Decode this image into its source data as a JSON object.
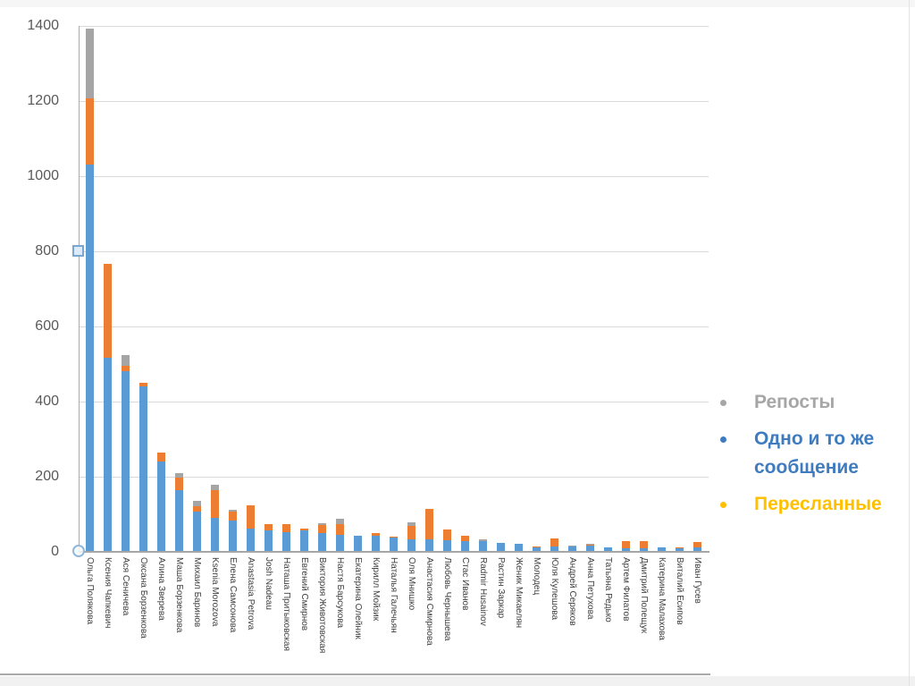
{
  "chrome": {
    "background": "#ffffff",
    "strip_color": "#f1f1f1",
    "slide_edge_color": "#a9a9a9"
  },
  "chart_data": {
    "type": "bar",
    "stacked": true,
    "title": "",
    "xlabel": "",
    "ylabel": "",
    "grid": true,
    "categories": [
      "Ольга Полякова",
      "Ксения Чапкевич",
      "Ася Сеничева",
      "Оксана Борзенкова",
      "Алина Зверева",
      "Маша Борзенкова",
      "Михаил Баринов",
      "Ksenia Morozova",
      "Елена Самсонова",
      "Anastasia Petrova",
      "Josh Nadeau",
      "Наташа Притыковская",
      "Евгений Смирнов",
      "Виктория Животовская",
      "Настя Барсукова",
      "Екатерина Олейник",
      "Кирилл Мойзик",
      "Наталья Галечьян",
      "Оля Мнишко",
      "Анастасия Смирнова",
      "Любовь Чернышева",
      "Стас Иванов",
      "Radmir Husainov",
      "Растин Заркар",
      "Женик Микаелян",
      "Молодец",
      "Юля Кулешова",
      "Андрей Серяков",
      "Анна Петухова",
      "Татьяна Редько",
      "Артем Филатов",
      "Дмитрий Полещук",
      "Катерина Малахова",
      "Виталий Есипов",
      "Иван Гусев"
    ],
    "series": [
      {
        "name": "Одно и то же сообщение",
        "color": "#5b9bd5",
        "values": [
          1030,
          517,
          482,
          441,
          241,
          164,
          106,
          91,
          83,
          63,
          56,
          53,
          56,
          51,
          45,
          44,
          44,
          37,
          33,
          33,
          30,
          28,
          28,
          23,
          22,
          12,
          15,
          14,
          16,
          11,
          10,
          9,
          11,
          9,
          11
        ]
      },
      {
        "name": "Пересланные",
        "color": "#ed7d31",
        "values": [
          178,
          250,
          13,
          9,
          24,
          34,
          16,
          74,
          24,
          60,
          17,
          20,
          6,
          20,
          28,
          0,
          5,
          4,
          37,
          82,
          30,
          16,
          0,
          0,
          0,
          2,
          21,
          0,
          2,
          0,
          19,
          20,
          0,
          4,
          16
        ]
      },
      {
        "name": "Репосты",
        "color": "#a5a5a5",
        "values": [
          185,
          0,
          30,
          0,
          0,
          12,
          13,
          13,
          6,
          0,
          0,
          0,
          0,
          6,
          14,
          0,
          0,
          0,
          8,
          0,
          0,
          0,
          6,
          0,
          0,
          0,
          0,
          2,
          4,
          0,
          0,
          0,
          0,
          0,
          0
        ]
      }
    ],
    "y_axis": {
      "min": 0,
      "max": 1400,
      "step": 200,
      "tick_labels": [
        "0",
        "200",
        "400",
        "600",
        "800",
        "1000",
        "1200",
        "1400"
      ]
    },
    "legend": {
      "position": "right",
      "items": [
        {
          "label": "Репосты",
          "color": "#a6a6a6"
        },
        {
          "label": "Одно и то же сообщение",
          "color": "#3f7cbf"
        },
        {
          "label": "Пересланные",
          "color": "#ffc000"
        }
      ]
    }
  }
}
